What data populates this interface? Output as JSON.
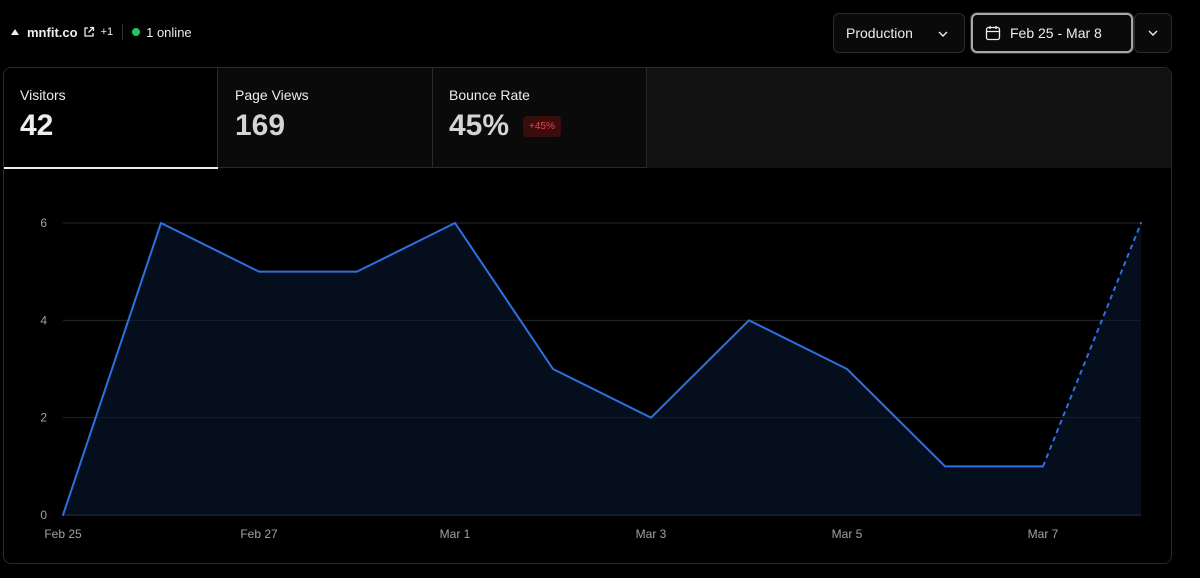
{
  "header": {
    "site_name": "mnfit.co",
    "extra_count": "+1",
    "online_text": "1 online",
    "environment": "Production",
    "date_range": "Feb 25 - Mar 8"
  },
  "metrics": [
    {
      "label": "Visitors",
      "value": "42"
    },
    {
      "label": "Page Views",
      "value": "169"
    },
    {
      "label": "Bounce Rate",
      "value": "45%",
      "badge": "+45%"
    }
  ],
  "colors": {
    "line": "#2f6fe0",
    "online": "#22c55e",
    "badge_text": "#f04444"
  },
  "chart_data": {
    "type": "line",
    "x": [
      "Feb 25",
      "Feb 26",
      "Feb 27",
      "Feb 28",
      "Mar 1",
      "Mar 2",
      "Mar 3",
      "Mar 4",
      "Mar 5",
      "Mar 6",
      "Mar 7",
      "Mar 8"
    ],
    "values": [
      0,
      6,
      5,
      5,
      6,
      3,
      2,
      4,
      3,
      1,
      1,
      6
    ],
    "dashed_from_index": 10,
    "x_tick_labels": [
      "Feb 25",
      "Feb 27",
      "Mar 1",
      "Mar 3",
      "Mar 5",
      "Mar 7"
    ],
    "y_ticks": [
      0,
      2,
      4,
      6
    ],
    "ylim": [
      0,
      6
    ],
    "grid": true,
    "area_fill": true,
    "title": "",
    "xlabel": "",
    "ylabel": ""
  }
}
